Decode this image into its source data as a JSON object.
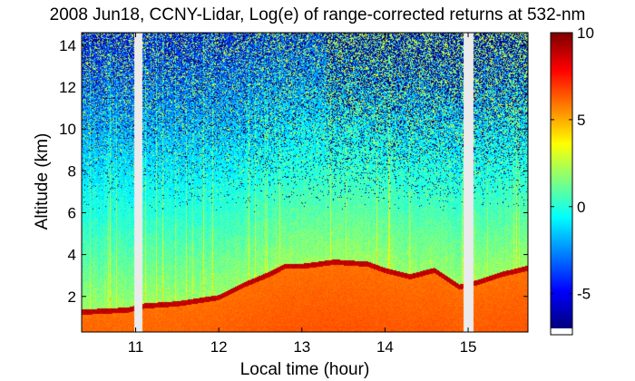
{
  "chart_data": {
    "type": "heatmap",
    "title": "2008 Jun18, CCNY-Lidar, Log(e) of range-corrected returns at 532-nm",
    "xlabel": "Local time (hour)",
    "ylabel": "Altitude (km)",
    "xlim": [
      10.35,
      15.72
    ],
    "ylim": [
      0.3,
      14.6
    ],
    "x_ticks": [
      11,
      12,
      13,
      14,
      15
    ],
    "y_ticks": [
      2,
      4,
      6,
      8,
      10,
      12,
      14
    ],
    "colorbar": {
      "min": -7,
      "max": 10,
      "ticks": [
        -5,
        0,
        5,
        10
      ],
      "colormap": "jet"
    },
    "data_gaps_hour": [
      [
        10.98,
        11.08
      ],
      [
        14.95,
        15.07
      ]
    ],
    "layers": {
      "aerosol_boundary_top_km": [
        {
          "t": 10.35,
          "h": 1.2
        },
        {
          "t": 10.6,
          "h": 1.25
        },
        {
          "t": 10.9,
          "h": 1.3
        },
        {
          "t": 11.1,
          "h": 1.5
        },
        {
          "t": 11.5,
          "h": 1.6
        },
        {
          "t": 12.0,
          "h": 1.9
        },
        {
          "t": 12.3,
          "h": 2.5
        },
        {
          "t": 12.6,
          "h": 3.0
        },
        {
          "t": 12.8,
          "h": 3.4
        },
        {
          "t": 13.0,
          "h": 3.4
        },
        {
          "t": 13.4,
          "h": 3.6
        },
        {
          "t": 13.8,
          "h": 3.5
        },
        {
          "t": 14.0,
          "h": 3.2
        },
        {
          "t": 14.3,
          "h": 2.9
        },
        {
          "t": 14.6,
          "h": 3.2
        },
        {
          "t": 14.9,
          "h": 2.4
        },
        {
          "t": 15.1,
          "h": 2.6
        },
        {
          "t": 15.4,
          "h": 3.0
        },
        {
          "t": 15.72,
          "h": 3.3
        }
      ]
    }
  }
}
